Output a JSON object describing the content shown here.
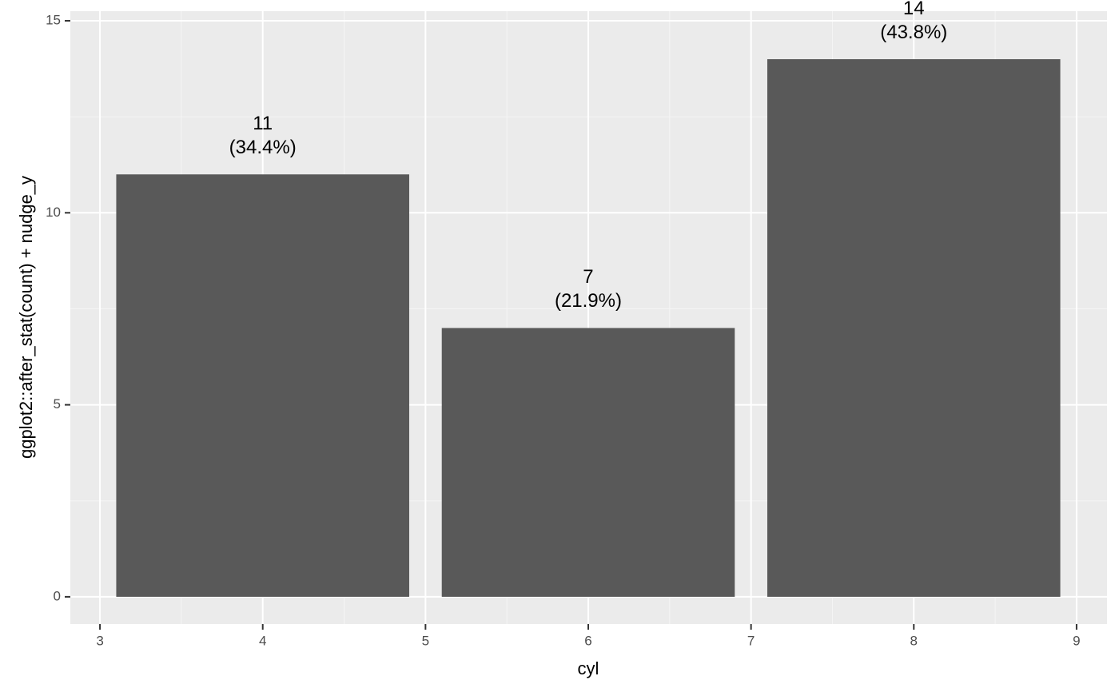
{
  "chart_data": {
    "type": "bar",
    "x": [
      4,
      6,
      8
    ],
    "values": [
      11,
      7,
      14
    ],
    "value_labels": [
      "11\n(34.4%)",
      "7\n(21.9%)",
      "14\n(43.8%)"
    ],
    "color": "#595959",
    "xlabel": "cyl",
    "ylabel": "ggplot2::after_stat(count) + nudge_y",
    "xlim": [
      2.818,
      9.187
    ],
    "xticks": [
      3,
      4,
      5,
      6,
      7,
      8,
      9
    ],
    "ylim": [
      -0.71,
      15.25
    ],
    "yticks": [
      0,
      5,
      10,
      15
    ],
    "grid": true,
    "minor_grid": true
  }
}
